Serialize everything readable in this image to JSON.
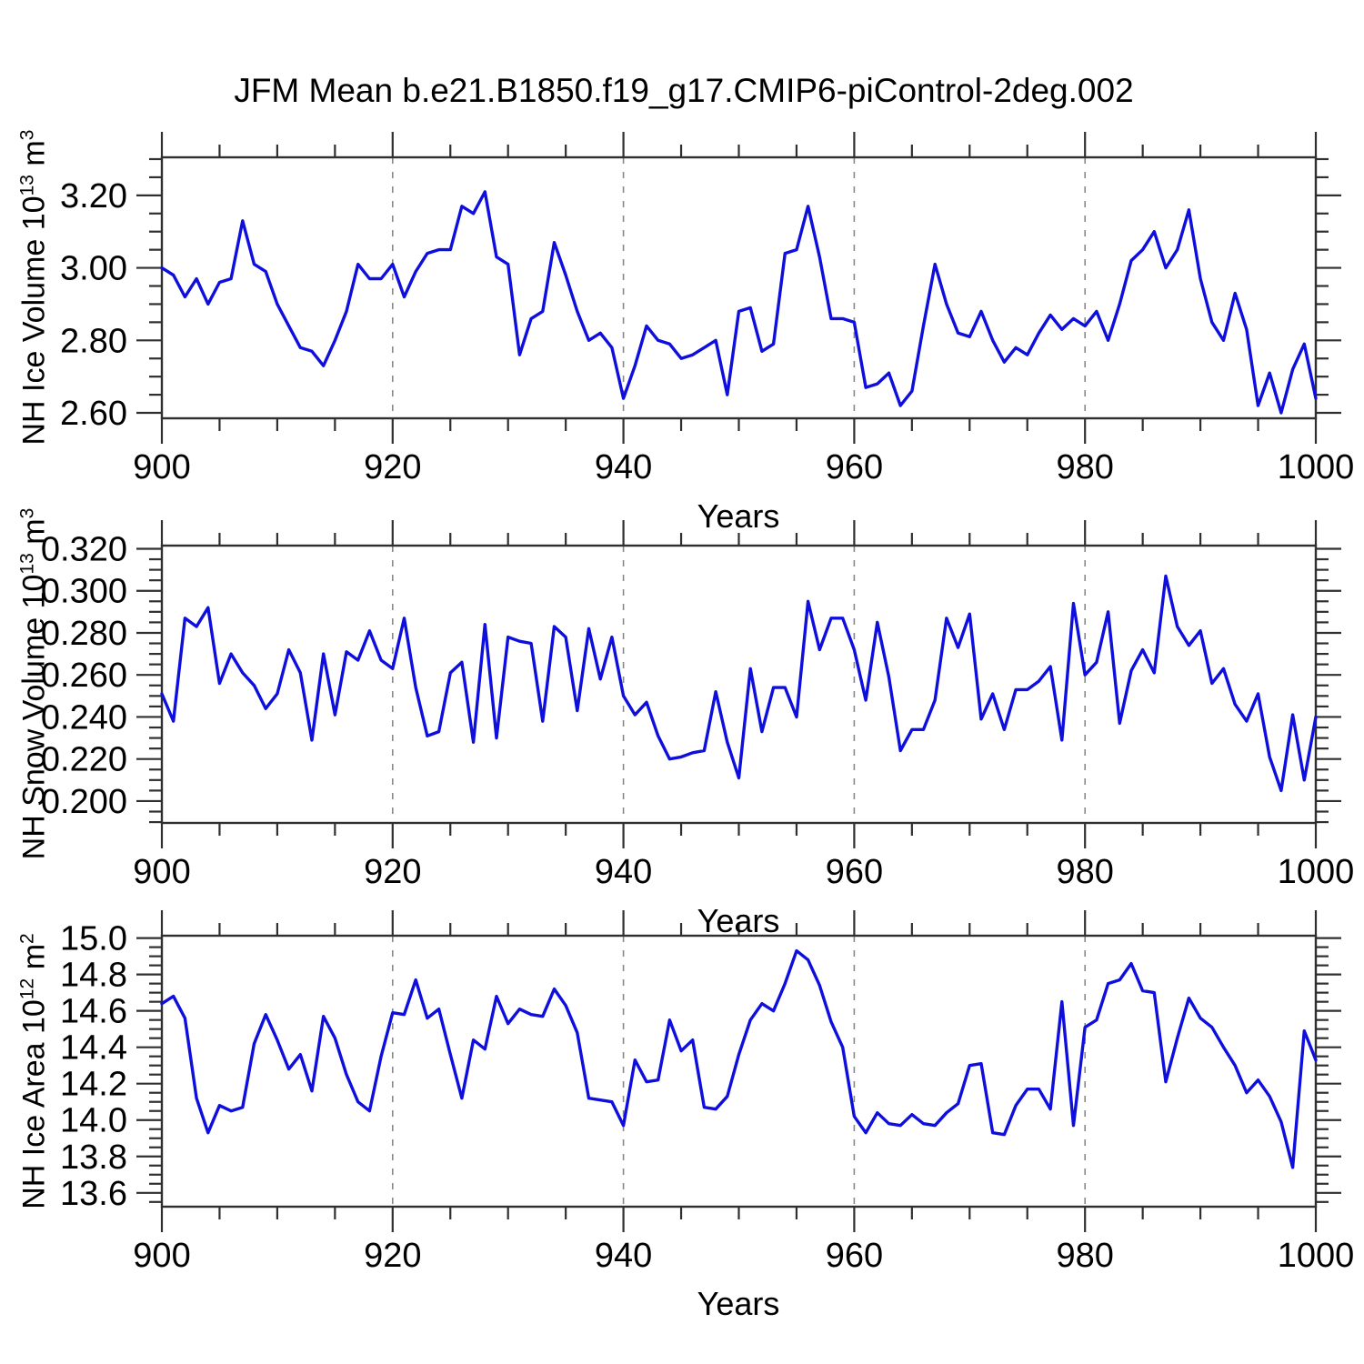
{
  "title": "JFM Mean b.e21.B1850.f19_g17.CMIP6-piControl-2deg.002",
  "axis_color": "#2f2f2f",
  "grid_color": "#888888",
  "chart_data": [
    {
      "name": "nh-ice-volume",
      "type": "line",
      "xlabel": "Years",
      "ylabel": "NH Ice Volume 10^13 m^3",
      "ylabel_parts": [
        "NH Ice Volume 10",
        "13",
        " m",
        "3"
      ],
      "xlim": [
        900,
        1000
      ],
      "ylim": [
        2.585,
        3.305
      ],
      "x_ticks": [
        900,
        920,
        940,
        960,
        980,
        1000
      ],
      "x_minor_step": 5,
      "grid_x": [
        920,
        940,
        960,
        980
      ],
      "y_ticks": [
        2.6,
        2.8,
        3.0,
        3.2
      ],
      "y_tick_labels": [
        "2.60",
        "2.80",
        "3.00",
        "3.20"
      ],
      "y_minor_step": 0.05,
      "line_color": "#0f0fdd",
      "x_start": 900,
      "x_step": 1,
      "values": [
        3.0,
        2.98,
        2.92,
        2.97,
        2.9,
        2.96,
        2.97,
        3.13,
        3.01,
        2.99,
        2.9,
        2.84,
        2.78,
        2.77,
        2.73,
        2.8,
        2.88,
        3.01,
        2.97,
        2.97,
        3.01,
        2.92,
        2.99,
        3.04,
        3.05,
        3.05,
        3.17,
        3.15,
        3.21,
        3.03,
        3.01,
        2.76,
        2.86,
        2.88,
        3.07,
        2.98,
        2.88,
        2.8,
        2.82,
        2.78,
        2.64,
        2.73,
        2.84,
        2.8,
        2.79,
        2.75,
        2.76,
        2.78,
        2.8,
        2.65,
        2.88,
        2.89,
        2.77,
        2.79,
        3.04,
        3.05,
        3.17,
        3.03,
        2.86,
        2.86,
        2.85,
        2.67,
        2.68,
        2.71,
        2.62,
        2.66,
        2.84,
        3.01,
        2.9,
        2.82,
        2.81,
        2.88,
        2.8,
        2.74,
        2.78,
        2.76,
        2.82,
        2.87,
        2.83,
        2.86,
        2.84,
        2.88,
        2.8,
        2.9,
        3.02,
        3.05,
        3.1,
        3.0,
        3.05,
        3.16,
        2.97,
        2.85,
        2.8,
        2.93,
        2.83,
        2.62,
        2.71,
        2.6,
        2.72,
        2.79,
        2.64
      ]
    },
    {
      "name": "nh-snow-volume",
      "type": "line",
      "xlabel": "Years",
      "ylabel": "NH Snow Volume 10^13 m^3",
      "ylabel_parts": [
        "NH Snow Volume 10",
        "13",
        " m",
        "3"
      ],
      "xlim": [
        900,
        1000
      ],
      "ylim": [
        0.1896,
        0.3215
      ],
      "x_ticks": [
        900,
        920,
        940,
        960,
        980,
        1000
      ],
      "x_minor_step": 5,
      "grid_x": [
        920,
        940,
        960,
        980
      ],
      "y_ticks": [
        0.2,
        0.22,
        0.24,
        0.26,
        0.28,
        0.3,
        0.32
      ],
      "y_tick_labels": [
        "0.200",
        "0.220",
        "0.240",
        "0.260",
        "0.280",
        "0.300",
        "0.320"
      ],
      "y_minor_step": 0.005,
      "line_color": "#0f0fdd",
      "x_start": 900,
      "x_step": 1,
      "values": [
        0.251,
        0.238,
        0.287,
        0.283,
        0.292,
        0.256,
        0.27,
        0.261,
        0.255,
        0.244,
        0.251,
        0.272,
        0.261,
        0.229,
        0.27,
        0.241,
        0.271,
        0.267,
        0.281,
        0.267,
        0.263,
        0.287,
        0.254,
        0.231,
        0.233,
        0.261,
        0.266,
        0.228,
        0.284,
        0.23,
        0.278,
        0.276,
        0.275,
        0.238,
        0.283,
        0.278,
        0.243,
        0.282,
        0.258,
        0.278,
        0.25,
        0.241,
        0.247,
        0.231,
        0.22,
        0.221,
        0.223,
        0.224,
        0.252,
        0.228,
        0.211,
        0.263,
        0.233,
        0.254,
        0.254,
        0.24,
        0.295,
        0.272,
        0.287,
        0.287,
        0.272,
        0.248,
        0.285,
        0.259,
        0.224,
        0.234,
        0.234,
        0.248,
        0.287,
        0.273,
        0.289,
        0.239,
        0.251,
        0.234,
        0.253,
        0.253,
        0.257,
        0.264,
        0.229,
        0.294,
        0.26,
        0.266,
        0.29,
        0.237,
        0.262,
        0.272,
        0.261,
        0.307,
        0.283,
        0.274,
        0.281,
        0.256,
        0.263,
        0.246,
        0.238,
        0.251,
        0.221,
        0.205,
        0.241,
        0.21,
        0.24
      ]
    },
    {
      "name": "nh-ice-area",
      "type": "line",
      "xlabel": "Years",
      "ylabel": "NH Ice Area 10^12 m^2",
      "ylabel_parts": [
        "NH Ice Area 10",
        "12",
        " m",
        "2"
      ],
      "xlim": [
        900,
        1000
      ],
      "ylim": [
        13.524,
        15.013
      ],
      "x_ticks": [
        900,
        920,
        940,
        960,
        980,
        1000
      ],
      "x_minor_step": 5,
      "grid_x": [
        920,
        940,
        960,
        980
      ],
      "y_ticks": [
        13.6,
        13.8,
        14.0,
        14.2,
        14.4,
        14.6,
        14.8,
        15.0
      ],
      "y_tick_labels": [
        "13.6",
        "13.8",
        "14.0",
        "14.2",
        "14.4",
        "14.6",
        "14.8",
        "15.0"
      ],
      "y_minor_step": 0.05,
      "line_color": "#0f0fdd",
      "x_start": 900,
      "x_step": 1,
      "values": [
        14.64,
        14.68,
        14.56,
        14.12,
        13.93,
        14.08,
        14.05,
        14.07,
        14.42,
        14.58,
        14.44,
        14.28,
        14.36,
        14.16,
        14.57,
        14.45,
        14.25,
        14.1,
        14.05,
        14.35,
        14.59,
        14.58,
        14.77,
        14.56,
        14.61,
        14.36,
        14.12,
        14.44,
        14.39,
        14.68,
        14.53,
        14.61,
        14.58,
        14.57,
        14.72,
        14.63,
        14.48,
        14.12,
        14.11,
        14.1,
        13.97,
        14.33,
        14.21,
        14.22,
        14.55,
        14.38,
        14.44,
        14.07,
        14.06,
        14.13,
        14.36,
        14.55,
        14.64,
        14.6,
        14.75,
        14.93,
        14.88,
        14.74,
        14.54,
        14.4,
        14.02,
        13.93,
        14.04,
        13.98,
        13.97,
        14.03,
        13.98,
        13.97,
        14.04,
        14.09,
        14.3,
        14.31,
        13.93,
        13.92,
        14.08,
        14.17,
        14.17,
        14.06,
        14.65,
        13.97,
        14.51,
        14.55,
        14.75,
        14.77,
        14.86,
        14.71,
        14.7,
        14.21,
        14.45,
        14.67,
        14.56,
        14.51,
        14.4,
        14.3,
        14.15,
        14.22,
        14.13,
        13.99,
        13.74,
        14.49,
        14.33
      ]
    }
  ]
}
